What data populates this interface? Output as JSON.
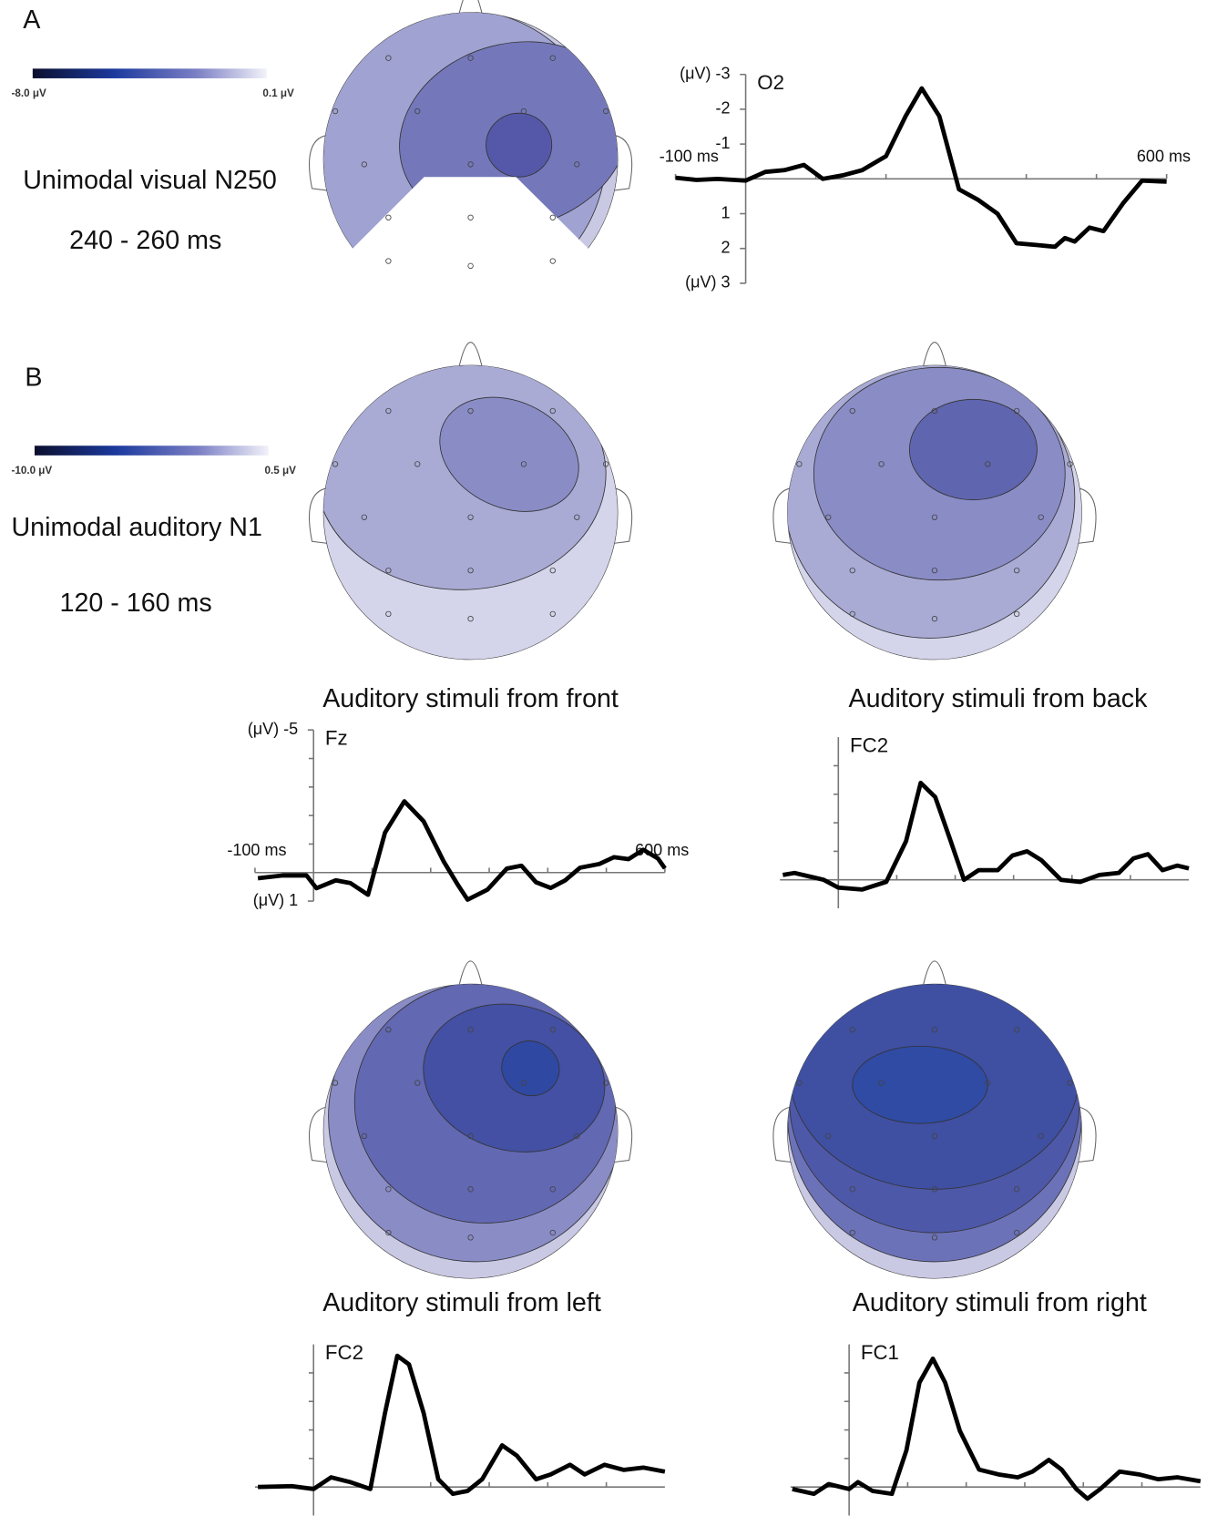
{
  "panel_labels": [
    "A",
    "B"
  ],
  "colorbars": [
    {
      "min_label": "-8.0 μV",
      "max_label": "0.1 μV"
    },
    {
      "min_label": "-10.0 μV",
      "max_label": "0.5 μV"
    }
  ],
  "captions": [
    {
      "title": "Unimodal visual N250",
      "window": "240 - 260 ms"
    },
    {
      "title": "Unimodal auditory N1",
      "window": "120 - 160 ms"
    }
  ],
  "topomap_titles": [
    "Auditory stimuli from front",
    "Auditory stimuli from back",
    "Auditory stimuli from left",
    "Auditory stimuli from right"
  ],
  "chart_data": [
    {
      "type": "line",
      "title": "O2",
      "color": "#000000",
      "y_inverted": true,
      "x": [
        -100,
        -70,
        -40,
        0,
        28,
        55,
        83,
        110,
        138,
        166,
        200,
        228,
        251,
        276,
        304,
        331,
        359,
        386,
        414,
        441,
        455,
        469,
        490,
        510,
        538,
        565,
        600
      ],
      "values": [
        -0.03,
        0.03,
        0,
        0.05,
        -0.2,
        -0.25,
        -0.4,
        0,
        -0.1,
        -0.25,
        -0.65,
        -1.8,
        -2.6,
        -1.8,
        0.3,
        0.6,
        1.0,
        1.85,
        1.9,
        1.95,
        1.7,
        1.8,
        1.4,
        1.5,
        0.7,
        0.05,
        0.08
      ],
      "xlim": [
        -100,
        600
      ],
      "ylim": [
        -3,
        3
      ],
      "xticks": [
        {
          "value": -100,
          "label": "-100 ms"
        },
        {
          "value": 600,
          "label": "600 ms"
        }
      ],
      "xminorticks": [
        100,
        200,
        300,
        400,
        500
      ],
      "yticks": [
        {
          "value": -3,
          "label": "(μV) -3"
        },
        -2,
        -1,
        1,
        2,
        {
          "value": 3,
          "label": "(μV) 3"
        }
      ]
    },
    {
      "type": "line",
      "title": "Fz",
      "color": "#000000",
      "y_inverted": true,
      "x": [
        -95,
        -53,
        -12,
        5,
        38,
        63,
        93,
        122,
        155,
        188,
        222,
        247,
        263,
        297,
        330,
        355,
        380,
        405,
        430,
        455,
        488,
        513,
        538,
        563,
        588,
        600
      ],
      "values": [
        0.2,
        0.1,
        0.1,
        0.55,
        0.27,
        0.37,
        0.78,
        -1.4,
        -2.5,
        -1.8,
        -0.4,
        0.45,
        0.95,
        0.6,
        -0.14,
        -0.24,
        0.34,
        0.54,
        0.27,
        -0.17,
        -0.3,
        -0.54,
        -0.47,
        -0.8,
        -0.5,
        -0.15
      ],
      "xlim": [
        -100,
        600
      ],
      "ylim": [
        -5,
        1
      ],
      "xticks": [
        {
          "value": -100,
          "label": "-100 ms"
        },
        {
          "value": 600,
          "label": "600 ms"
        }
      ],
      "xminorticks": [
        100,
        200,
        300,
        400,
        500
      ],
      "yticks": [
        {
          "value": -5,
          "label": "(μV) -5"
        },
        {
          "value": 1,
          "label": "(μV) 1"
        }
      ],
      "yminorticks": [
        -4,
        -3,
        -2,
        -1
      ]
    },
    {
      "type": "line",
      "title": "FC2",
      "color": "#000000",
      "y_inverted": true,
      "x": [
        -95,
        -75,
        -25,
        0,
        41,
        82,
        116,
        141,
        166,
        190,
        215,
        240,
        273,
        298,
        323,
        348,
        381,
        414,
        447,
        480,
        505,
        530,
        555,
        580,
        600
      ],
      "values": [
        -0.17,
        -0.24,
        0,
        0.27,
        0.34,
        0.07,
        -1.36,
        -3.4,
        -2.9,
        -1.5,
        0,
        -0.34,
        -0.34,
        -0.85,
        -1,
        -0.68,
        0,
        0.07,
        -0.17,
        -0.24,
        -0.75,
        -0.9,
        -0.34,
        -0.5,
        -0.4
      ],
      "xlim": [
        -100,
        600
      ],
      "ylim": [
        -5,
        1
      ],
      "xminorticks": [
        100,
        200,
        300,
        400,
        500
      ],
      "yminorticks": [
        -4,
        -3,
        -2,
        -1
      ]
    },
    {
      "type": "line",
      "title": "FC2",
      "color": "#000000",
      "y_inverted": true,
      "x": [
        -95,
        -37,
        0,
        30,
        63,
        97,
        122,
        143,
        163,
        188,
        213,
        238,
        263,
        288,
        322,
        347,
        380,
        405,
        438,
        463,
        497,
        530,
        563,
        600
      ],
      "values": [
        0,
        -0.03,
        0.07,
        -0.34,
        -0.17,
        0.07,
        -2.6,
        -4.6,
        -4.3,
        -2.6,
        -0.27,
        0.24,
        0.14,
        -0.27,
        -1.46,
        -1.1,
        -0.27,
        -0.44,
        -0.78,
        -0.44,
        -0.78,
        -0.6,
        -0.68,
        -0.54
      ],
      "xlim": [
        -100,
        600
      ],
      "ylim": [
        -5,
        1
      ],
      "xminorticks": [
        100,
        200,
        300,
        400,
        500
      ],
      "yminorticks": [
        -4,
        -3,
        -2,
        -1
      ]
    },
    {
      "type": "line",
      "title": "FC1",
      "color": "#000000",
      "y_inverted": true,
      "x": [
        -97,
        -60,
        -35,
        0,
        15,
        40,
        73,
        98,
        120,
        143,
        164,
        189,
        222,
        255,
        288,
        313,
        341,
        363,
        388,
        407,
        429,
        462,
        495,
        528,
        561,
        600
      ],
      "values": [
        0.07,
        0.24,
        -0.1,
        0.07,
        -0.17,
        0.14,
        0.24,
        -1.29,
        -3.66,
        -4.5,
        -3.66,
        -1.97,
        -0.61,
        -0.44,
        -0.34,
        -0.54,
        -0.95,
        -0.61,
        0.07,
        0.41,
        0.07,
        -0.54,
        -0.44,
        -0.27,
        -0.34,
        -0.2
      ],
      "xlim": [
        -100,
        600
      ],
      "ylim": [
        -5,
        1
      ],
      "xminorticks": [
        100,
        200,
        300,
        400,
        500
      ],
      "yminorticks": [
        -4,
        -3,
        -2,
        -1
      ]
    }
  ]
}
